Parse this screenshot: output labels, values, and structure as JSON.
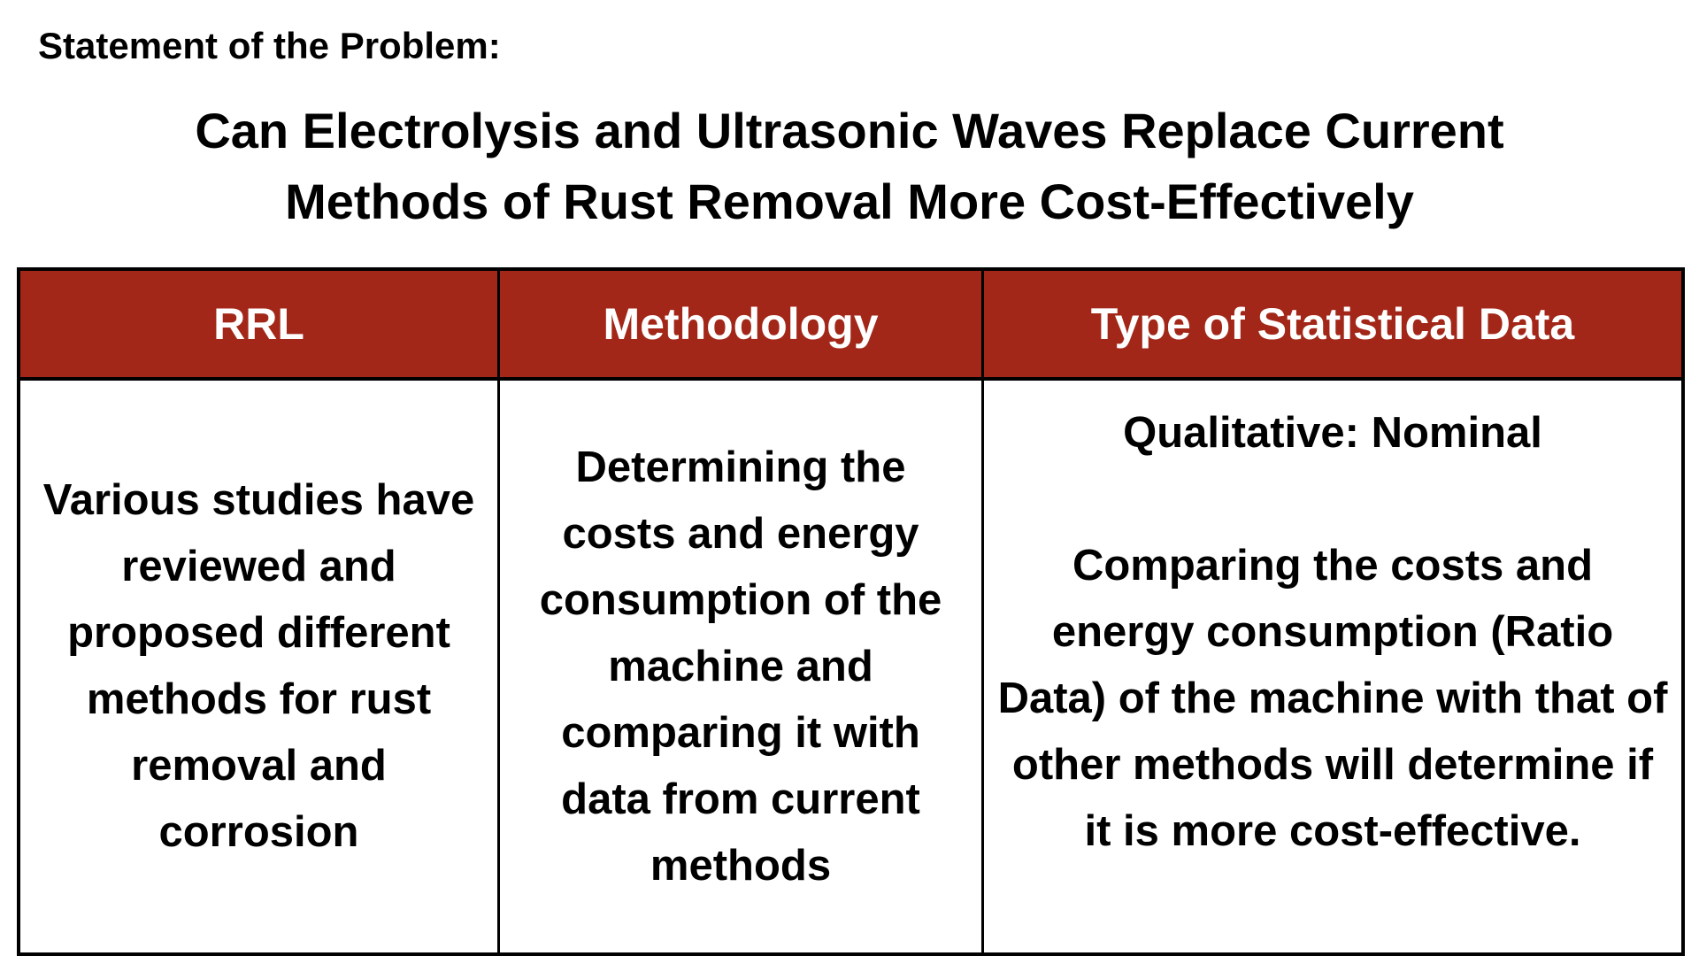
{
  "header": {
    "statement_label": "Statement of the Problem:",
    "title": "Can Electrolysis and Ultrasonic Waves Replace Current Methods of Rust Removal More Cost-Effectively"
  },
  "table": {
    "columns": [
      "RRL",
      "Methodology",
      "Type of Statistical Data"
    ],
    "rrl_text": "Various studies have reviewed and proposed different methods for rust removal and corrosion",
    "methodology_text": "Determining the costs and energy consumption of the machine and comparing it with data from current methods",
    "data_type_heading": "Qualitative: Nominal",
    "data_type_text": "Comparing the costs and energy consumption (Ratio Data) of the machine with that of other methods will determine if it is more cost-effective."
  },
  "colors": {
    "header_bg": "#a22718",
    "header_text": "#ffffff",
    "border": "#000000"
  }
}
